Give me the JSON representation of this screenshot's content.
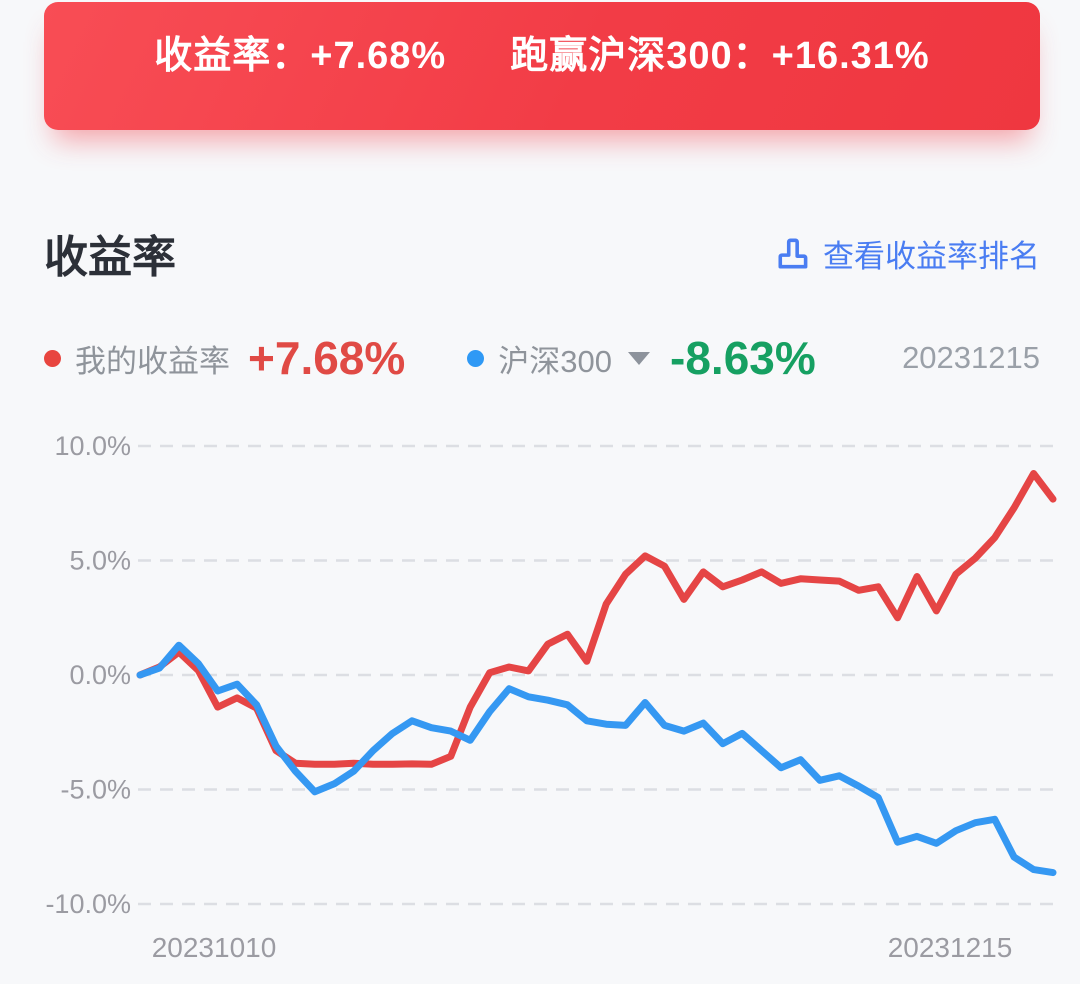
{
  "banner": {
    "return_stat": "收益率：+7.68%",
    "beat_stat": "跑赢沪深300：+16.31%"
  },
  "section": {
    "title": "收益率",
    "ranking_link": "查看收益率排名"
  },
  "legend": {
    "mine_label": "我的收益率",
    "mine_value": "+7.68%",
    "index_label": "沪深300",
    "index_value": "-8.63%",
    "date": "20231215"
  },
  "colors": {
    "banner_red": "#f23c46",
    "my_line_red": "#e54545",
    "index_line_blue": "#3598f2",
    "positive_red": "#e04a45",
    "negative_green": "#16a062",
    "link_blue": "#4a7df2",
    "axis_text_gray": "#9b9ba2",
    "grid_gray": "#dcdee3"
  },
  "chart_data": {
    "type": "line",
    "title": "",
    "xlabel": "",
    "ylabel": "",
    "ylim": [
      -10,
      10
    ],
    "y_ticks": [
      10,
      5,
      0,
      -5,
      -10
    ],
    "y_tick_labels": [
      "10.0%",
      "5.0%",
      "0.0%",
      "-5.0%",
      "-10.0%"
    ],
    "x_tick_labels": [
      "20231010",
      "20231215"
    ],
    "x_description": "48 trading days from 20231010 to 20231215, evenly spaced",
    "grid": "horizontal-dashed",
    "legend_position": "top",
    "series": [
      {
        "name": "我的收益率",
        "color": "#e54545",
        "final_value": 7.68,
        "values": [
          0.0,
          0.35,
          1.0,
          0.2,
          -1.4,
          -1.0,
          -1.45,
          -3.3,
          -3.85,
          -3.9,
          -3.9,
          -3.85,
          -3.9,
          -3.9,
          -3.88,
          -3.9,
          -3.55,
          -1.4,
          0.1,
          0.35,
          0.18,
          1.35,
          1.78,
          0.6,
          3.1,
          4.4,
          5.2,
          4.75,
          3.3,
          4.5,
          3.85,
          4.15,
          4.5,
          4.0,
          4.2,
          4.15,
          4.1,
          3.7,
          3.85,
          2.5,
          4.3,
          2.8,
          4.4,
          5.1,
          6.0,
          7.3,
          8.8,
          7.68
        ]
      },
      {
        "name": "沪深300",
        "color": "#3598f2",
        "final_value": -8.63,
        "values": [
          0.0,
          0.3,
          1.3,
          0.5,
          -0.7,
          -0.4,
          -1.3,
          -3.1,
          -4.2,
          -5.1,
          -4.75,
          -4.2,
          -3.3,
          -2.55,
          -2.0,
          -2.3,
          -2.45,
          -2.85,
          -1.6,
          -0.6,
          -0.95,
          -1.1,
          -1.3,
          -2.0,
          -2.15,
          -2.2,
          -1.2,
          -2.2,
          -2.45,
          -2.1,
          -3.0,
          -2.55,
          -3.3,
          -4.05,
          -3.7,
          -4.6,
          -4.4,
          -4.85,
          -5.35,
          -7.3,
          -7.05,
          -7.35,
          -6.8,
          -6.45,
          -6.3,
          -7.95,
          -8.5,
          -8.63
        ]
      }
    ]
  }
}
